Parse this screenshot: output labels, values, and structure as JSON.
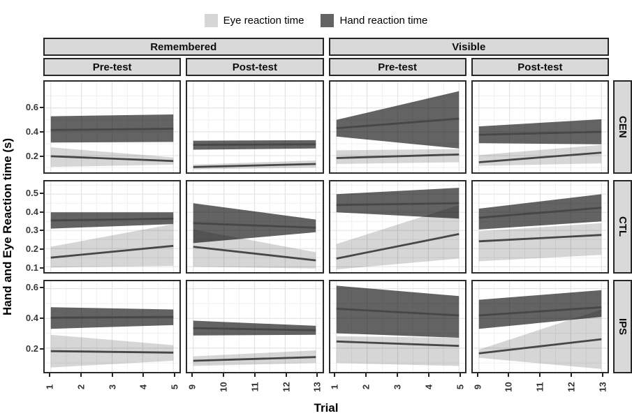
{
  "legend": {
    "items": [
      {
        "label": "Eye reaction time",
        "color": "#d6d6d6"
      },
      {
        "label": "Hand reaction time",
        "color": "#636363"
      }
    ]
  },
  "chart_data": {
    "type": "area",
    "x_title": "Trial",
    "y_title": "Hand and Eye Reaction time (s)",
    "facet_col_groups": [
      "Remembered",
      "Visible"
    ],
    "facet_col_tests": [
      "Pre-test",
      "Post-test",
      "Pre-test",
      "Post-test"
    ],
    "facet_rows": [
      "CEN",
      "CTL",
      "IPS"
    ],
    "series": [
      {
        "name": "Eye reaction time",
        "fill": "rgba(0,0,0,0.16)",
        "legend_color": "#d6d6d6"
      },
      {
        "name": "Hand reaction time",
        "fill": "rgba(0,0,0,0.61)",
        "legend_color": "#636363"
      }
    ],
    "line_color": "#474747",
    "grid": {
      "major_color": "#e4e4e4",
      "minor_color": "#f0f0f0"
    },
    "x_cols": [
      {
        "ticks": [
          1,
          2,
          3,
          4,
          5
        ]
      },
      {
        "ticks": [
          9,
          10,
          11,
          12,
          13
        ]
      },
      {
        "ticks": [
          1,
          2,
          3,
          4,
          5
        ]
      },
      {
        "ticks": [
          9,
          10,
          11,
          12,
          13
        ]
      }
    ],
    "y_rows": [
      {
        "label": "CEN",
        "ylim": [
          0.06,
          0.82
        ],
        "ticks": [
          0.2,
          0.4,
          0.6
        ]
      },
      {
        "label": "CTL",
        "ylim": [
          0.07,
          0.57
        ],
        "ticks": [
          0.1,
          0.2,
          0.3,
          0.4,
          0.5
        ]
      },
      {
        "label": "IPS",
        "ylim": [
          0.04,
          0.65
        ],
        "ticks": [
          0.2,
          0.4,
          0.6
        ]
      }
    ],
    "panels": [
      {
        "row": 0,
        "col": 0,
        "facet": "CEN Remembered Pre-test",
        "x": [
          1,
          5
        ],
        "eye": {
          "lower": [
            0.105,
            0.125
          ],
          "mean": [
            0.195,
            0.155
          ],
          "upper": [
            0.27,
            0.185
          ]
        },
        "hand": {
          "lower": [
            0.31,
            0.315
          ],
          "mean": [
            0.415,
            0.425
          ],
          "upper": [
            0.53,
            0.545
          ]
        }
      },
      {
        "row": 0,
        "col": 1,
        "facet": "CEN Remembered Post-test",
        "x": [
          9,
          13
        ],
        "eye": {
          "lower": [
            0.085,
            0.1
          ],
          "mean": [
            0.105,
            0.13
          ],
          "upper": [
            0.125,
            0.16
          ]
        },
        "hand": {
          "lower": [
            0.25,
            0.26
          ],
          "mean": [
            0.29,
            0.295
          ],
          "upper": [
            0.325,
            0.33
          ]
        }
      },
      {
        "row": 0,
        "col": 2,
        "facet": "CEN Visible Pre-test",
        "x": [
          1,
          5
        ],
        "eye": {
          "lower": [
            0.13,
            0.145
          ],
          "mean": [
            0.18,
            0.21
          ],
          "upper": [
            0.245,
            0.255
          ]
        },
        "hand": {
          "lower": [
            0.36,
            0.26
          ],
          "mean": [
            0.43,
            0.51
          ],
          "upper": [
            0.5,
            0.74
          ]
        }
      },
      {
        "row": 0,
        "col": 3,
        "facet": "CEN Visible Post-test",
        "x": [
          9,
          13
        ],
        "eye": {
          "lower": [
            0.115,
            0.135
          ],
          "mean": [
            0.145,
            0.225
          ],
          "upper": [
            0.205,
            0.29
          ]
        },
        "hand": {
          "lower": [
            0.305,
            0.295
          ],
          "mean": [
            0.375,
            0.4
          ],
          "upper": [
            0.445,
            0.505
          ]
        }
      },
      {
        "row": 1,
        "col": 0,
        "facet": "CTL Remembered Pre-test",
        "x": [
          1,
          5
        ],
        "eye": {
          "lower": [
            0.095,
            0.105
          ],
          "mean": [
            0.15,
            0.215
          ],
          "upper": [
            0.21,
            0.335
          ]
        },
        "hand": {
          "lower": [
            0.31,
            0.335
          ],
          "mean": [
            0.355,
            0.365
          ],
          "upper": [
            0.4,
            0.4
          ]
        }
      },
      {
        "row": 1,
        "col": 1,
        "facet": "CTL Remembered Post-test",
        "x": [
          9,
          13
        ],
        "eye": {
          "lower": [
            0.1,
            0.09
          ],
          "mean": [
            0.21,
            0.135
          ],
          "upper": [
            0.305,
            0.18
          ]
        },
        "hand": {
          "lower": [
            0.23,
            0.29
          ],
          "mean": [
            0.34,
            0.315
          ],
          "upper": [
            0.45,
            0.36
          ]
        }
      },
      {
        "row": 1,
        "col": 2,
        "facet": "CTL Visible Pre-test",
        "x": [
          1,
          5
        ],
        "eye": {
          "lower": [
            0.085,
            0.145
          ],
          "mean": [
            0.145,
            0.28
          ],
          "upper": [
            0.225,
            0.44
          ]
        },
        "hand": {
          "lower": [
            0.4,
            0.365
          ],
          "mean": [
            0.44,
            0.45
          ],
          "upper": [
            0.5,
            0.535
          ]
        }
      },
      {
        "row": 1,
        "col": 3,
        "facet": "CTL Visible Post-test",
        "x": [
          9,
          13
        ],
        "eye": {
          "lower": [
            0.13,
            0.165
          ],
          "mean": [
            0.24,
            0.275
          ],
          "upper": [
            0.295,
            0.34
          ]
        },
        "hand": {
          "lower": [
            0.305,
            0.35
          ],
          "mean": [
            0.37,
            0.425
          ],
          "upper": [
            0.42,
            0.5
          ]
        }
      },
      {
        "row": 2,
        "col": 0,
        "facet": "IPS Remembered Pre-test",
        "x": [
          1,
          5
        ],
        "eye": {
          "lower": [
            0.07,
            0.115
          ],
          "mean": [
            0.18,
            0.17
          ],
          "upper": [
            0.29,
            0.22
          ]
        },
        "hand": {
          "lower": [
            0.33,
            0.355
          ],
          "mean": [
            0.405,
            0.41
          ],
          "upper": [
            0.475,
            0.46
          ]
        }
      },
      {
        "row": 2,
        "col": 1,
        "facet": "IPS Remembered Post-test",
        "x": [
          9,
          13
        ],
        "eye": {
          "lower": [
            0.08,
            0.1
          ],
          "mean": [
            0.115,
            0.14
          ],
          "upper": [
            0.145,
            0.185
          ]
        },
        "hand": {
          "lower": [
            0.285,
            0.29
          ],
          "mean": [
            0.335,
            0.32
          ],
          "upper": [
            0.385,
            0.35
          ]
        }
      },
      {
        "row": 2,
        "col": 2,
        "facet": "IPS Visible Pre-test",
        "x": [
          1,
          5
        ],
        "eye": {
          "lower": [
            0.1,
            0.08
          ],
          "mean": [
            0.245,
            0.215
          ],
          "upper": [
            0.28,
            0.27
          ]
        },
        "hand": {
          "lower": [
            0.3,
            0.27
          ],
          "mean": [
            0.465,
            0.42
          ],
          "upper": [
            0.62,
            0.55
          ]
        }
      },
      {
        "row": 2,
        "col": 3,
        "facet": "IPS Visible Post-test",
        "x": [
          9,
          13
        ],
        "eye": {
          "lower": [
            0.135,
            0.06
          ],
          "mean": [
            0.165,
            0.26
          ],
          "upper": [
            0.19,
            0.46
          ]
        },
        "hand": {
          "lower": [
            0.33,
            0.41
          ],
          "mean": [
            0.42,
            0.475
          ],
          "upper": [
            0.525,
            0.59
          ]
        }
      }
    ]
  }
}
